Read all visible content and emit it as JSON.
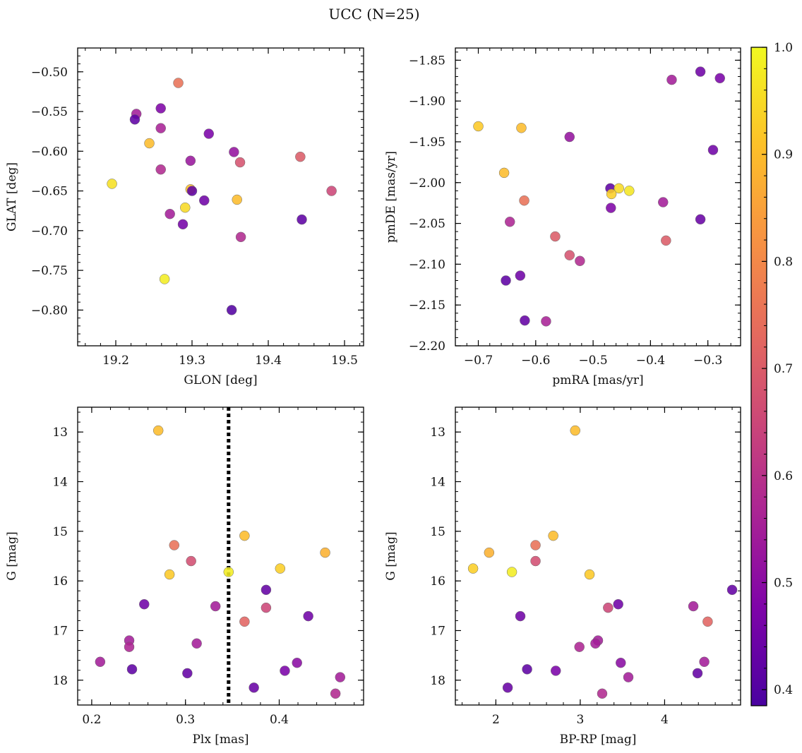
{
  "title": "UCC (N=25)",
  "colorbar": {
    "ticks": [
      0.4,
      0.5,
      0.6,
      0.7,
      0.8,
      0.9,
      1.0
    ],
    "tick_labels": [
      "0.4",
      "0.5",
      "0.6",
      "0.7",
      "0.8",
      "0.9",
      "1.0"
    ],
    "range": [
      0.385,
      1.0
    ],
    "colormap": "plasma"
  },
  "chart_data": [
    {
      "id": "glon-glat",
      "type": "scatter",
      "xlabel": "GLON [deg]",
      "ylabel": "GLAT [deg]",
      "xlim": [
        19.15,
        19.525
      ],
      "ylim": [
        -0.845,
        -0.47
      ],
      "invert_y": false,
      "xticks": [
        19.2,
        19.3,
        19.4,
        19.5
      ],
      "xtick_labels": [
        "19.2",
        "19.3",
        "19.4",
        "19.5"
      ],
      "yticks": [
        -0.5,
        -0.55,
        -0.6,
        -0.65,
        -0.7,
        -0.75,
        -0.8
      ],
      "ytick_labels": [
        "−0.50",
        "−0.55",
        "−0.60",
        "−0.65",
        "−0.70",
        "−0.75",
        "−0.80"
      ],
      "points": [
        {
          "x": 19.282,
          "y": -0.514,
          "c": 0.75
        },
        {
          "x": 19.227,
          "y": -0.553,
          "c": 0.55
        },
        {
          "x": 19.225,
          "y": -0.56,
          "c": 0.42
        },
        {
          "x": 19.259,
          "y": -0.546,
          "c": 0.48
        },
        {
          "x": 19.259,
          "y": -0.571,
          "c": 0.56
        },
        {
          "x": 19.322,
          "y": -0.578,
          "c": 0.47
        },
        {
          "x": 19.244,
          "y": -0.59,
          "c": 0.9
        },
        {
          "x": 19.355,
          "y": -0.601,
          "c": 0.52
        },
        {
          "x": 19.298,
          "y": -0.612,
          "c": 0.53
        },
        {
          "x": 19.363,
          "y": -0.614,
          "c": 0.68
        },
        {
          "x": 19.442,
          "y": -0.607,
          "c": 0.7
        },
        {
          "x": 19.259,
          "y": -0.623,
          "c": 0.58
        },
        {
          "x": 19.195,
          "y": -0.641,
          "c": 0.96
        },
        {
          "x": 19.298,
          "y": -0.648,
          "c": 0.9
        },
        {
          "x": 19.3,
          "y": -0.65,
          "c": 0.42
        },
        {
          "x": 19.483,
          "y": -0.65,
          "c": 0.65
        },
        {
          "x": 19.359,
          "y": -0.661,
          "c": 0.9
        },
        {
          "x": 19.316,
          "y": -0.662,
          "c": 0.45
        },
        {
          "x": 19.291,
          "y": -0.671,
          "c": 0.95
        },
        {
          "x": 19.271,
          "y": -0.679,
          "c": 0.55
        },
        {
          "x": 19.288,
          "y": -0.692,
          "c": 0.46
        },
        {
          "x": 19.444,
          "y": -0.686,
          "c": 0.42
        },
        {
          "x": 19.364,
          "y": -0.708,
          "c": 0.58
        },
        {
          "x": 19.264,
          "y": -0.761,
          "c": 0.98
        },
        {
          "x": 19.352,
          "y": -0.8,
          "c": 0.4
        }
      ]
    },
    {
      "id": "pm",
      "type": "scatter",
      "xlabel": "pmRA [mas/yr]",
      "ylabel": "pmDE [mas/yr]",
      "xlim": [
        -0.74,
        -0.243
      ],
      "ylim": [
        -2.2,
        -1.835
      ],
      "invert_y": false,
      "xticks": [
        -0.7,
        -0.6,
        -0.5,
        -0.4,
        -0.3
      ],
      "xtick_labels": [
        "−0.7",
        "−0.6",
        "−0.5",
        "−0.4",
        "−0.3"
      ],
      "yticks": [
        -1.85,
        -1.9,
        -1.95,
        -2.0,
        -2.05,
        -2.1,
        -2.15,
        -2.2
      ],
      "ytick_labels": [
        "−1.85",
        "−1.90",
        "−1.95",
        "−2.00",
        "−2.05",
        "−2.10",
        "−2.15",
        "−2.20"
      ],
      "points": [
        {
          "x": -0.313,
          "y": -1.864,
          "c": 0.45
        },
        {
          "x": -0.279,
          "y": -1.872,
          "c": 0.47
        },
        {
          "x": -0.363,
          "y": -1.874,
          "c": 0.55
        },
        {
          "x": -0.7,
          "y": -1.931,
          "c": 0.92
        },
        {
          "x": -0.625,
          "y": -1.933,
          "c": 0.9
        },
        {
          "x": -0.541,
          "y": -1.944,
          "c": 0.52
        },
        {
          "x": -0.291,
          "y": -1.96,
          "c": 0.45
        },
        {
          "x": -0.655,
          "y": -1.988,
          "c": 0.9
        },
        {
          "x": -0.47,
          "y": -2.007,
          "c": 0.42
        },
        {
          "x": -0.455,
          "y": -2.007,
          "c": 0.95
        },
        {
          "x": -0.437,
          "y": -2.01,
          "c": 0.97
        },
        {
          "x": -0.468,
          "y": -2.014,
          "c": 0.93
        },
        {
          "x": -0.62,
          "y": -2.022,
          "c": 0.75
        },
        {
          "x": -0.378,
          "y": -2.024,
          "c": 0.55
        },
        {
          "x": -0.469,
          "y": -2.031,
          "c": 0.48
        },
        {
          "x": -0.313,
          "y": -2.045,
          "c": 0.44
        },
        {
          "x": -0.645,
          "y": -2.048,
          "c": 0.57
        },
        {
          "x": -0.566,
          "y": -2.066,
          "c": 0.7
        },
        {
          "x": -0.373,
          "y": -2.071,
          "c": 0.7
        },
        {
          "x": -0.541,
          "y": -2.089,
          "c": 0.68
        },
        {
          "x": -0.523,
          "y": -2.096,
          "c": 0.58
        },
        {
          "x": -0.627,
          "y": -2.114,
          "c": 0.45
        },
        {
          "x": -0.652,
          "y": -2.12,
          "c": 0.42
        },
        {
          "x": -0.619,
          "y": -2.169,
          "c": 0.43
        },
        {
          "x": -0.582,
          "y": -2.17,
          "c": 0.56
        }
      ]
    },
    {
      "id": "plx-g",
      "type": "scatter",
      "xlabel": "Plx [mas]",
      "ylabel": "G [mag]",
      "xlim": [
        0.185,
        0.49
      ],
      "ylim": [
        12.5,
        18.5
      ],
      "invert_y": true,
      "xticks": [
        0.2,
        0.3,
        0.4
      ],
      "xtick_labels": [
        "0.2",
        "0.3",
        "0.4"
      ],
      "yticks": [
        13,
        14,
        15,
        16,
        17,
        18
      ],
      "ytick_labels": [
        "13",
        "14",
        "15",
        "16",
        "17",
        "18"
      ],
      "vline": {
        "x": 0.346,
        "style": "dotted"
      },
      "points": [
        {
          "x": 0.271,
          "y": 12.97,
          "c": 0.9
        },
        {
          "x": 0.363,
          "y": 15.09,
          "c": 0.9
        },
        {
          "x": 0.288,
          "y": 15.28,
          "c": 0.75
        },
        {
          "x": 0.449,
          "y": 15.43,
          "c": 0.88
        },
        {
          "x": 0.306,
          "y": 15.6,
          "c": 0.67
        },
        {
          "x": 0.401,
          "y": 15.75,
          "c": 0.93
        },
        {
          "x": 0.346,
          "y": 15.82,
          "c": 0.98
        },
        {
          "x": 0.283,
          "y": 15.87,
          "c": 0.92
        },
        {
          "x": 0.386,
          "y": 16.18,
          "c": 0.43
        },
        {
          "x": 0.256,
          "y": 16.47,
          "c": 0.45
        },
        {
          "x": 0.332,
          "y": 16.51,
          "c": 0.55
        },
        {
          "x": 0.386,
          "y": 16.54,
          "c": 0.65
        },
        {
          "x": 0.431,
          "y": 16.71,
          "c": 0.45
        },
        {
          "x": 0.363,
          "y": 16.82,
          "c": 0.72
        },
        {
          "x": 0.24,
          "y": 17.2,
          "c": 0.55
        },
        {
          "x": 0.312,
          "y": 17.26,
          "c": 0.55
        },
        {
          "x": 0.24,
          "y": 17.33,
          "c": 0.57
        },
        {
          "x": 0.209,
          "y": 17.63,
          "c": 0.55
        },
        {
          "x": 0.419,
          "y": 17.65,
          "c": 0.5
        },
        {
          "x": 0.243,
          "y": 17.78,
          "c": 0.42
        },
        {
          "x": 0.406,
          "y": 17.81,
          "c": 0.47
        },
        {
          "x": 0.302,
          "y": 17.86,
          "c": 0.43
        },
        {
          "x": 0.465,
          "y": 17.94,
          "c": 0.55
        },
        {
          "x": 0.373,
          "y": 18.15,
          "c": 0.44
        },
        {
          "x": 0.46,
          "y": 18.27,
          "c": 0.58
        }
      ]
    },
    {
      "id": "cmd",
      "type": "scatter",
      "xlabel": "BP-RP [mag]",
      "ylabel": "G [mag]",
      "xlim": [
        1.52,
        4.9
      ],
      "ylim": [
        12.5,
        18.5
      ],
      "invert_y": true,
      "xticks": [
        2,
        3,
        4
      ],
      "xtick_labels": [
        "2",
        "3",
        "4"
      ],
      "yticks": [
        13,
        14,
        15,
        16,
        17,
        18
      ],
      "ytick_labels": [
        "13",
        "14",
        "15",
        "16",
        "17",
        "18"
      ],
      "points": [
        {
          "x": 2.94,
          "y": 12.97,
          "c": 0.9
        },
        {
          "x": 2.68,
          "y": 15.09,
          "c": 0.9
        },
        {
          "x": 2.47,
          "y": 15.28,
          "c": 0.75
        },
        {
          "x": 1.92,
          "y": 15.43,
          "c": 0.88
        },
        {
          "x": 2.47,
          "y": 15.6,
          "c": 0.67
        },
        {
          "x": 1.73,
          "y": 15.75,
          "c": 0.93
        },
        {
          "x": 2.19,
          "y": 15.82,
          "c": 0.98
        },
        {
          "x": 3.11,
          "y": 15.87,
          "c": 0.92
        },
        {
          "x": 4.8,
          "y": 16.18,
          "c": 0.43
        },
        {
          "x": 3.45,
          "y": 16.47,
          "c": 0.45
        },
        {
          "x": 4.34,
          "y": 16.51,
          "c": 0.55
        },
        {
          "x": 3.33,
          "y": 16.54,
          "c": 0.65
        },
        {
          "x": 2.29,
          "y": 16.71,
          "c": 0.45
        },
        {
          "x": 4.51,
          "y": 16.82,
          "c": 0.72
        },
        {
          "x": 3.21,
          "y": 17.2,
          "c": 0.55
        },
        {
          "x": 3.18,
          "y": 17.26,
          "c": 0.55
        },
        {
          "x": 2.99,
          "y": 17.33,
          "c": 0.57
        },
        {
          "x": 4.47,
          "y": 17.63,
          "c": 0.55
        },
        {
          "x": 3.48,
          "y": 17.65,
          "c": 0.5
        },
        {
          "x": 2.37,
          "y": 17.78,
          "c": 0.42
        },
        {
          "x": 2.71,
          "y": 17.81,
          "c": 0.47
        },
        {
          "x": 4.39,
          "y": 17.86,
          "c": 0.43
        },
        {
          "x": 3.57,
          "y": 17.94,
          "c": 0.55
        },
        {
          "x": 2.14,
          "y": 18.15,
          "c": 0.44
        },
        {
          "x": 3.26,
          "y": 18.27,
          "c": 0.58
        }
      ]
    }
  ]
}
